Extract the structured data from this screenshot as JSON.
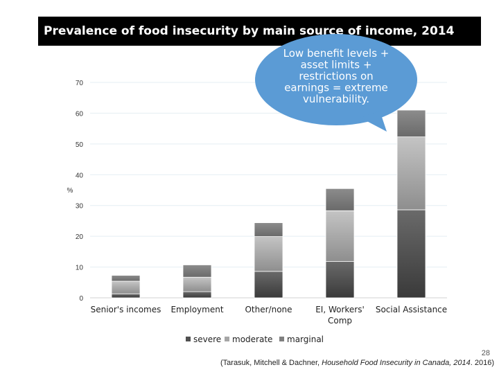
{
  "slide": {
    "title": "Prevalence of food insecurity by main source of income, 2014",
    "page_number": "28",
    "citation_prefix": "(Tarasuk, Mitchell & Dachner, ",
    "citation_title": "Household Food Insecurity in Canada, 2014",
    "citation_suffix": ". 2016)"
  },
  "callout": {
    "lines": [
      "Low benefit levels +",
      "asset limits +",
      "restrictions on",
      "earnings = extreme",
      "vulnerability."
    ],
    "color": "#5b9bd5"
  },
  "chart_data": {
    "type": "bar",
    "stacked": true,
    "title": "",
    "xlabel": "",
    "ylabel": "%",
    "ylim": [
      0,
      70
    ],
    "yticks": [
      0,
      10,
      20,
      30,
      40,
      50,
      60,
      70
    ],
    "grid": true,
    "legend_position": "bottom",
    "categories": [
      "Senior's incomes",
      "Employment",
      "Other/none",
      "EI, Workers' Comp",
      "Social Assistance"
    ],
    "category_label_lines": [
      [
        "Senior's incomes"
      ],
      [
        "Employment"
      ],
      [
        "Other/none"
      ],
      [
        "EI, Workers'",
        "Comp"
      ],
      [
        "Social Assistance"
      ]
    ],
    "series": [
      {
        "name": "severe",
        "values": [
          1.3,
          2.0,
          8.6,
          11.8,
          28.6
        ],
        "color": "#505050"
      },
      {
        "name": "moderate",
        "values": [
          4.1,
          4.7,
          11.3,
          16.5,
          23.7
        ],
        "color": "#a6a6a6"
      },
      {
        "name": "marginal",
        "values": [
          1.9,
          4.0,
          4.5,
          7.2,
          8.7
        ],
        "color": "#7f7f7f"
      }
    ]
  }
}
